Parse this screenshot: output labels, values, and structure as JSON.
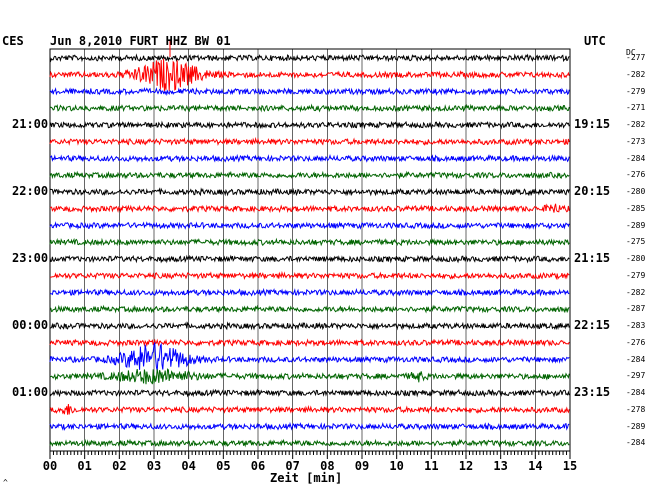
{
  "chart_data": {
    "type": "line",
    "title": "Jun 8,2010   FURT HHZ BW 01",
    "xlabel": "Zeit [min]",
    "left_timezone": "CES",
    "right_timezone": "UTC",
    "dc_header": "DC",
    "x_ticks": [
      "00",
      "01",
      "02",
      "03",
      "04",
      "05",
      "06",
      "07",
      "08",
      "09",
      "10",
      "11",
      "12",
      "13",
      "14",
      "15"
    ],
    "xlim": [
      0,
      15
    ],
    "left_hour_labels": [
      "21:00",
      "22:00",
      "23:00",
      "00:00",
      "01:00"
    ],
    "right_hour_labels": [
      "19:15",
      "20:15",
      "21:15",
      "22:15",
      "23:15"
    ],
    "trace_colors": [
      "#000000",
      "#ff0000",
      "#0000ff",
      "#006400"
    ],
    "dc_offsets": [
      "-277",
      "-282",
      "-279",
      "-271",
      "-282",
      "-273",
      "-284",
      "-276",
      "-280",
      "-285",
      "-289",
      "-275",
      "-280",
      "-279",
      "-282",
      "-287",
      "-283",
      "-276",
      "-284",
      "-297",
      "-284",
      "-278",
      "-289",
      "-284"
    ],
    "events": [
      {
        "trace": 1,
        "minute": 3.4,
        "amplitude": "large"
      },
      {
        "trace": 18,
        "minute": 3.0,
        "amplitude": "large"
      },
      {
        "trace": 19,
        "minute": 3.0,
        "amplitude": "medium"
      },
      {
        "trace": 19,
        "minute": 10.6,
        "amplitude": "small"
      },
      {
        "trace": 21,
        "minute": 0.5,
        "amplitude": "small"
      },
      {
        "trace": 9,
        "minute": 14.5,
        "amplitude": "small"
      }
    ],
    "grid": true
  },
  "footer_mark": "^"
}
